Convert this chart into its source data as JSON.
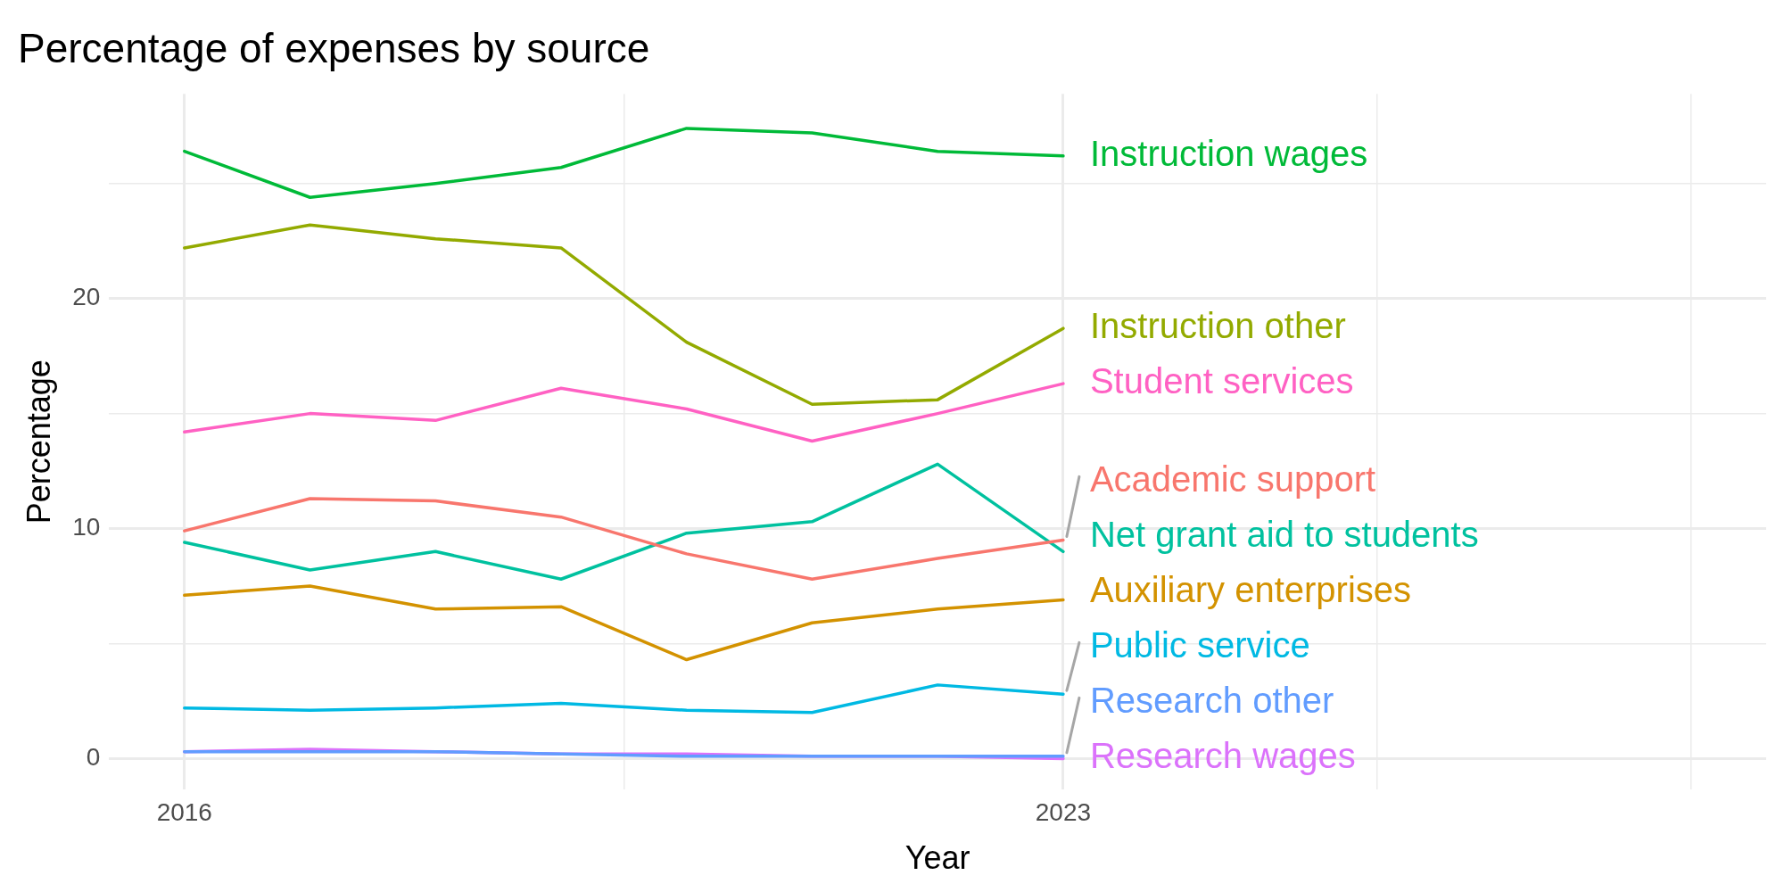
{
  "chart_data": {
    "type": "line",
    "title": "Percentage of expenses by source",
    "xlabel": "Year",
    "ylabel": "Percentage",
    "x": [
      2016,
      2017,
      2018,
      2019,
      2020,
      2021,
      2022,
      2023
    ],
    "series": [
      {
        "name": "Academic support",
        "color": "#f8766d",
        "values": [
          9.9,
          11.3,
          11.2,
          10.5,
          8.9,
          7.8,
          8.7,
          9.5
        ]
      },
      {
        "name": "Auxiliary enterprises",
        "color": "#d39200",
        "values": [
          7.1,
          7.5,
          6.5,
          6.6,
          4.3,
          5.9,
          6.5,
          6.9
        ]
      },
      {
        "name": "Instruction other",
        "color": "#93aa00",
        "values": [
          22.2,
          23.2,
          22.6,
          22.2,
          18.1,
          15.4,
          15.6,
          18.7
        ]
      },
      {
        "name": "Instruction wages",
        "color": "#00ba38",
        "values": [
          26.4,
          24.4,
          25.0,
          25.7,
          27.4,
          27.2,
          26.4,
          26.2
        ]
      },
      {
        "name": "Net grant aid to students",
        "color": "#00c19f",
        "values": [
          9.4,
          8.2,
          9.0,
          7.8,
          9.8,
          10.3,
          12.8,
          9.0
        ]
      },
      {
        "name": "Public service",
        "color": "#00b9e3",
        "values": [
          2.2,
          2.1,
          2.2,
          2.4,
          2.1,
          2.0,
          3.2,
          2.8
        ]
      },
      {
        "name": "Research other",
        "color": "#619cff",
        "values": [
          0.3,
          0.3,
          0.3,
          0.2,
          0.1,
          0.1,
          0.1,
          0.1
        ]
      },
      {
        "name": "Research wages",
        "color": "#db72fb",
        "values": [
          0.3,
          0.4,
          0.3,
          0.2,
          0.2,
          0.1,
          0.1,
          0.0
        ]
      },
      {
        "name": "Student services",
        "color": "#ff61c3",
        "values": [
          14.2,
          15.0,
          14.7,
          16.1,
          15.2,
          13.8,
          15.0,
          16.3
        ]
      }
    ],
    "xlim": [
      2015.4,
      2028.6
    ],
    "xticks": [
      2016,
      {
        "value": 2019.5,
        "label": null
      },
      2023,
      {
        "value": 2025.5,
        "label": null
      },
      {
        "value": 2028,
        "label": null
      }
    ],
    "ylim": [
      -1.35,
      28.9
    ],
    "yticks": [
      0,
      {
        "value": 5,
        "label": null
      },
      10,
      {
        "value": 15,
        "label": null
      },
      20,
      {
        "value": 25,
        "label": null
      }
    ],
    "grid": true,
    "legend": false,
    "marker": "none",
    "line_style": "solid"
  }
}
